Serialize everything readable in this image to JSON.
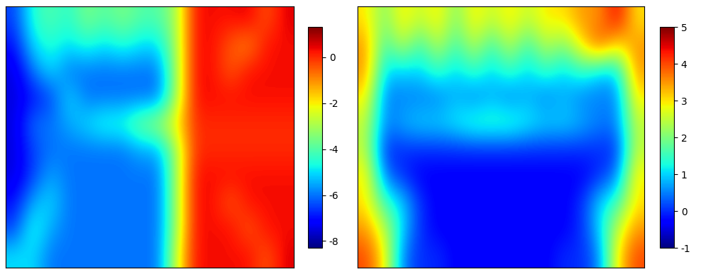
{
  "chart_data": [
    {
      "type": "heatmap",
      "tick_labels": false,
      "color_range": [
        -8.3,
        1.3
      ],
      "color_ticks": [
        -8,
        -6,
        -4,
        -2,
        0
      ],
      "cells": [
        [
          -6.5,
          -4.5,
          -4,
          -4.5,
          -3.5,
          -4,
          -3.5,
          -4,
          -4,
          -3,
          0.3,
          0.3,
          0.3,
          0.5,
          -0.5,
          0.5
        ],
        [
          -7,
          -5,
          -4.5,
          -5,
          -4.5,
          -5,
          -4.5,
          -5,
          -5,
          -3,
          0.3,
          0.3,
          -0.5,
          -1,
          0.3,
          0.3
        ],
        [
          -7.5,
          -6,
          -5,
          -6,
          -6,
          -6,
          -6,
          -6,
          -6,
          -3,
          0.3,
          0.3,
          -0.5,
          0.3,
          0.3,
          0.3
        ],
        [
          -7.5,
          -7,
          -6.5,
          -5,
          -6,
          -6,
          -6,
          -6,
          -6,
          -3,
          0.3,
          0.3,
          0.3,
          0.3,
          0.3,
          0.3
        ],
        [
          -7.5,
          -6,
          -6,
          -5.5,
          -5,
          -4.5,
          -4.5,
          -3.5,
          -3,
          -2,
          0,
          0,
          0,
          0,
          0,
          0
        ],
        [
          -7.5,
          -6.5,
          -6,
          -6,
          -6,
          -6,
          -6,
          -5.5,
          -5.5,
          -3,
          0,
          0,
          0,
          0,
          0,
          0
        ],
        [
          -7.5,
          -6.5,
          -5.5,
          -6,
          -6,
          -6,
          -6,
          -6,
          -6,
          -3,
          0.3,
          0.3,
          0.3,
          0.3,
          0.3,
          0.3
        ],
        [
          -7,
          -5.5,
          -5,
          -6,
          -6,
          -6,
          -6,
          -6,
          -6,
          -3,
          0.3,
          0.3,
          -0.5,
          0.3,
          0.3,
          0.3
        ],
        [
          -6.5,
          -4.5,
          -5.5,
          -6,
          -6,
          -6,
          -6,
          -6,
          -6,
          -3,
          0.3,
          0.3,
          0.3,
          -0.5,
          0.3,
          0.3
        ],
        [
          -5,
          -5,
          -6,
          -6,
          -6,
          -6,
          -6,
          -6,
          -6,
          -2.5,
          0.3,
          0.3,
          0.3,
          0.3,
          -0.5,
          0.5
        ]
      ]
    },
    {
      "type": "heatmap",
      "tick_labels": false,
      "color_range": [
        -1,
        5
      ],
      "color_ticks": [
        -1,
        0,
        1,
        2,
        3,
        4,
        5
      ],
      "cells": [
        [
          3,
          2,
          3,
          2.5,
          3,
          2,
          3,
          2.5,
          3,
          2.5,
          3,
          3,
          3.5,
          3.5,
          4.5,
          3
        ],
        [
          3.5,
          1.5,
          2.5,
          1.5,
          2.5,
          1.5,
          2.5,
          1.5,
          2.5,
          1.5,
          2.5,
          2,
          3,
          4,
          3,
          3.5
        ],
        [
          3.5,
          1,
          1,
          1,
          1.5,
          1,
          1.5,
          1,
          1.5,
          1,
          1.5,
          1,
          1.5,
          1,
          1,
          3.5
        ],
        [
          3,
          0.5,
          0.5,
          0.5,
          0.5,
          0.8,
          0.5,
          0.8,
          0.5,
          0.8,
          0.5,
          0.8,
          0.5,
          0.5,
          0.5,
          3
        ],
        [
          2.5,
          0.5,
          0.8,
          1,
          1,
          1.2,
          1.5,
          1.5,
          1.5,
          1.2,
          1,
          1,
          0.8,
          0.5,
          0.5,
          2.5
        ],
        [
          2.5,
          0,
          0,
          0,
          0,
          0,
          0,
          0,
          0,
          0,
          0,
          0,
          0,
          0,
          0,
          2.5
        ],
        [
          3,
          0.5,
          0,
          -0.3,
          -0.3,
          -0.3,
          -0.3,
          -0.3,
          -0.3,
          -0.3,
          -0.3,
          -0.3,
          -0.3,
          0,
          0.5,
          3
        ],
        [
          3,
          1.5,
          1,
          0,
          -0.3,
          -0.3,
          -0.3,
          -0.3,
          -0.3,
          -0.3,
          -0.3,
          -0.3,
          0,
          1,
          1.5,
          3
        ],
        [
          3.5,
          2.5,
          1,
          0,
          -0.3,
          -0.3,
          -0.3,
          -0.3,
          -0.3,
          -0.3,
          -0.3,
          -0.3,
          0,
          1,
          2.5,
          3.5
        ],
        [
          4,
          3,
          0.5,
          0,
          0,
          -0.3,
          -0.3,
          -0.3,
          -0.3,
          -0.3,
          -0.3,
          0,
          0,
          0.5,
          3,
          4
        ]
      ]
    }
  ]
}
